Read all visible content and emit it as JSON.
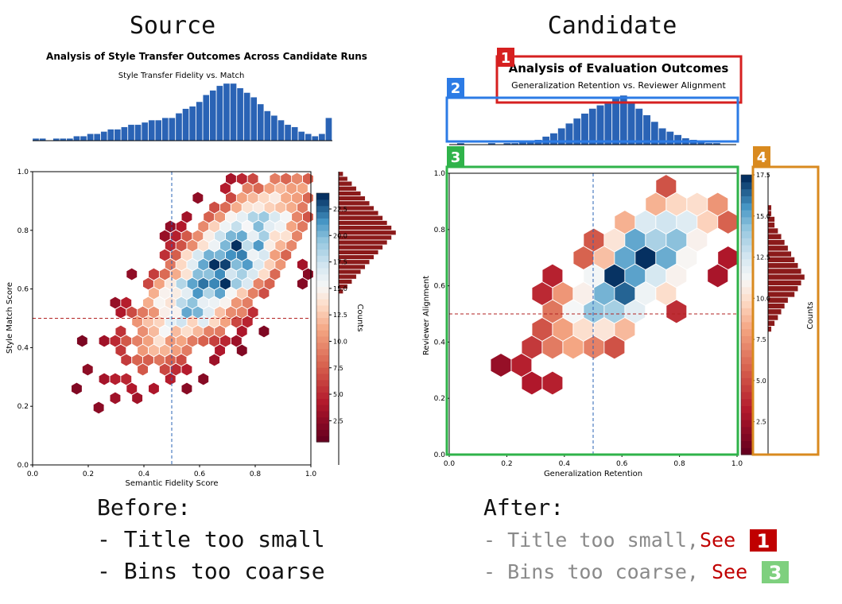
{
  "headings": {
    "source": "Source",
    "candidate": "Candidate"
  },
  "colors": {
    "hist_blue": "#2a63b5",
    "hist_dark_red": "#8b1a1a",
    "ref_red": "#b22222",
    "ref_blue": "#2a63b5",
    "box1": "#d62020",
    "box2": "#2c7be5",
    "box3": "#2fb34a",
    "box4": "#d98a1f",
    "note_gray": "#8a8a8a",
    "note_red": "#c00000",
    "badge_green": "#7ed07e"
  },
  "chart_data": [
    {
      "id": "source",
      "type": "heatmap",
      "subtype": "hexbin-joint",
      "title": "Analysis of Style Transfer Outcomes Across Candidate Runs",
      "subtitle": "Style Transfer Fidelity vs. Match",
      "xlabel": "Semantic Fidelity Score",
      "ylabel": "Style Match Score",
      "colorbar_label": "Counts",
      "xlim": [
        0.0,
        1.0
      ],
      "ylim": [
        0.0,
        1.0
      ],
      "x_ticks": [
        "0.0",
        "0.2",
        "0.4",
        "0.6",
        "0.8",
        "1.0"
      ],
      "y_ticks": [
        "0.0",
        "0.2",
        "0.4",
        "0.6",
        "0.8",
        "1.0"
      ],
      "colorbar_range": [
        0.5,
        24
      ],
      "colorbar_ticks": [
        "2.5",
        "5.0",
        "7.5",
        "10.0",
        "12.5",
        "15.0",
        "17.5",
        "20.0",
        "22.5"
      ],
      "ref_lines": {
        "x": 0.5,
        "y": 0.5
      },
      "colormap": "RdBu",
      "hexbin_center": [
        0.68,
        0.67
      ],
      "top_histogram": [
        1,
        1,
        0,
        1,
        1,
        1,
        2,
        2,
        3,
        3,
        4,
        5,
        5,
        6,
        7,
        7,
        8,
        9,
        9,
        10,
        10,
        12,
        14,
        15,
        17,
        20,
        22,
        24,
        25,
        25,
        23,
        21,
        19,
        16,
        13,
        11,
        9,
        7,
        6,
        4,
        3,
        2,
        3,
        10
      ],
      "right_histogram": [
        1,
        2,
        3,
        4,
        5,
        6,
        7,
        8,
        9,
        10,
        11,
        12,
        13,
        12,
        11,
        10,
        9,
        8,
        7,
        6,
        5,
        4,
        3,
        2,
        1
      ]
    },
    {
      "id": "candidate",
      "type": "heatmap",
      "subtype": "hexbin-joint",
      "title": "Analysis of Evaluation Outcomes",
      "subtitle": "Generalization Retention vs. Reviewer Alignment",
      "xlabel": "Generalization Retention",
      "ylabel": "Reviewer Alignment",
      "colorbar_label": "Counts",
      "xlim": [
        0.0,
        1.0
      ],
      "ylim": [
        0.0,
        1.0
      ],
      "x_ticks": [
        "0.0",
        "0.2",
        "0.4",
        "0.6",
        "0.8",
        "1.0"
      ],
      "y_ticks": [
        "0.0",
        "0.2",
        "0.4",
        "0.6",
        "0.8",
        "1.0"
      ],
      "colorbar_range": [
        0.5,
        17.5
      ],
      "colorbar_ticks": [
        "2.5",
        "5.0",
        "7.5",
        "10.0",
        "12.5",
        "15.0",
        "17.5"
      ],
      "ref_lines": {
        "x": 0.5,
        "y": 0.5
      },
      "colormap": "RdBu",
      "top_histogram": [
        0,
        1,
        0,
        0,
        0,
        1,
        0,
        1,
        1,
        2,
        2,
        3,
        5,
        7,
        10,
        13,
        16,
        19,
        22,
        24,
        25,
        28,
        30,
        26,
        22,
        18,
        14,
        10,
        8,
        6,
        4,
        3,
        2,
        1,
        1,
        0,
        0
      ],
      "right_histogram": [
        1,
        1,
        2,
        2,
        3,
        4,
        5,
        6,
        7,
        8,
        9,
        10,
        11,
        10,
        9,
        8,
        6,
        5,
        4,
        3,
        2,
        1
      ]
    }
  ],
  "annotations": [
    {
      "number": "1",
      "target": "title"
    },
    {
      "number": "2",
      "target": "top-histogram"
    },
    {
      "number": "3",
      "target": "hexbin-plot"
    },
    {
      "number": "4",
      "target": "colorbar-and-side-histogram"
    }
  ],
  "notes": {
    "before_heading": "Before:",
    "before_items": [
      "- Title too small",
      "- Bins too coarse"
    ],
    "after_heading": "After:",
    "after_items": [
      {
        "text": "- Title too small,",
        "see": "See",
        "badge": "1"
      },
      {
        "text": "- Bins too coarse,",
        "see": "See",
        "badge": "3"
      }
    ]
  }
}
